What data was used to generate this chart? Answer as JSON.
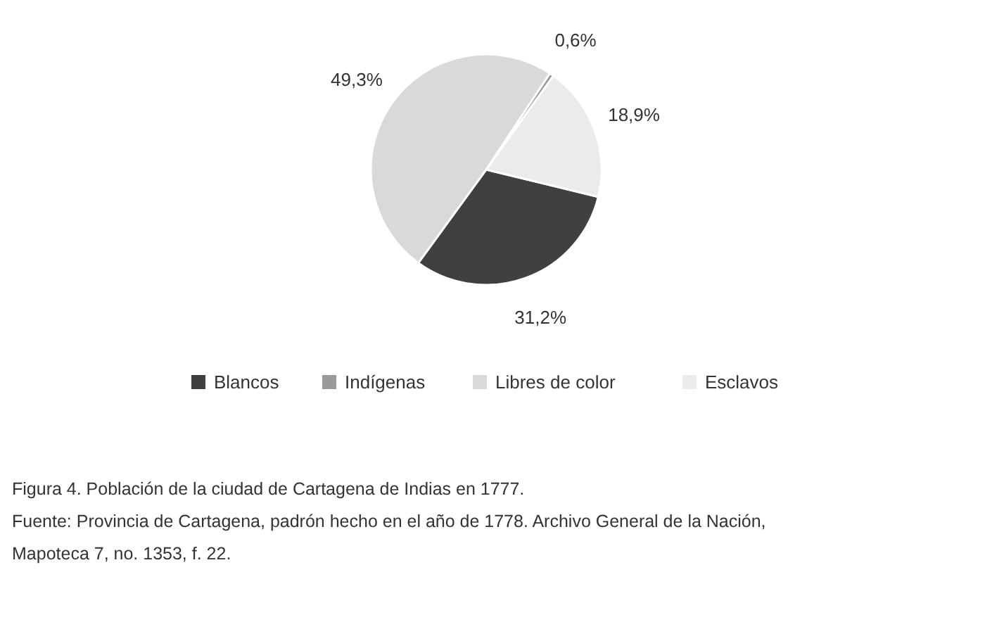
{
  "chart_data": {
    "type": "pie",
    "categories": [
      "Blancos",
      "Indígenas",
      "Libres de color",
      "Esclavos"
    ],
    "values": [
      31.2,
      0.6,
      49.3,
      18.9
    ],
    "value_labels": [
      "31,2%",
      "0,6%",
      "49,3%",
      "18,9%"
    ],
    "colors": [
      "#404040",
      "#999999",
      "#d9d9d9",
      "#ebebeb"
    ],
    "legend": "bottom",
    "annotations": [
      "Figura 4. Población de la ciudad de Cartagena de Indias en 1777.",
      "Fuente: Provincia de Cartagena, padrón hecho en el año de 1778. Archivo General de la Nación, Mapoteca 7, no. 1353, f. 22."
    ]
  }
}
